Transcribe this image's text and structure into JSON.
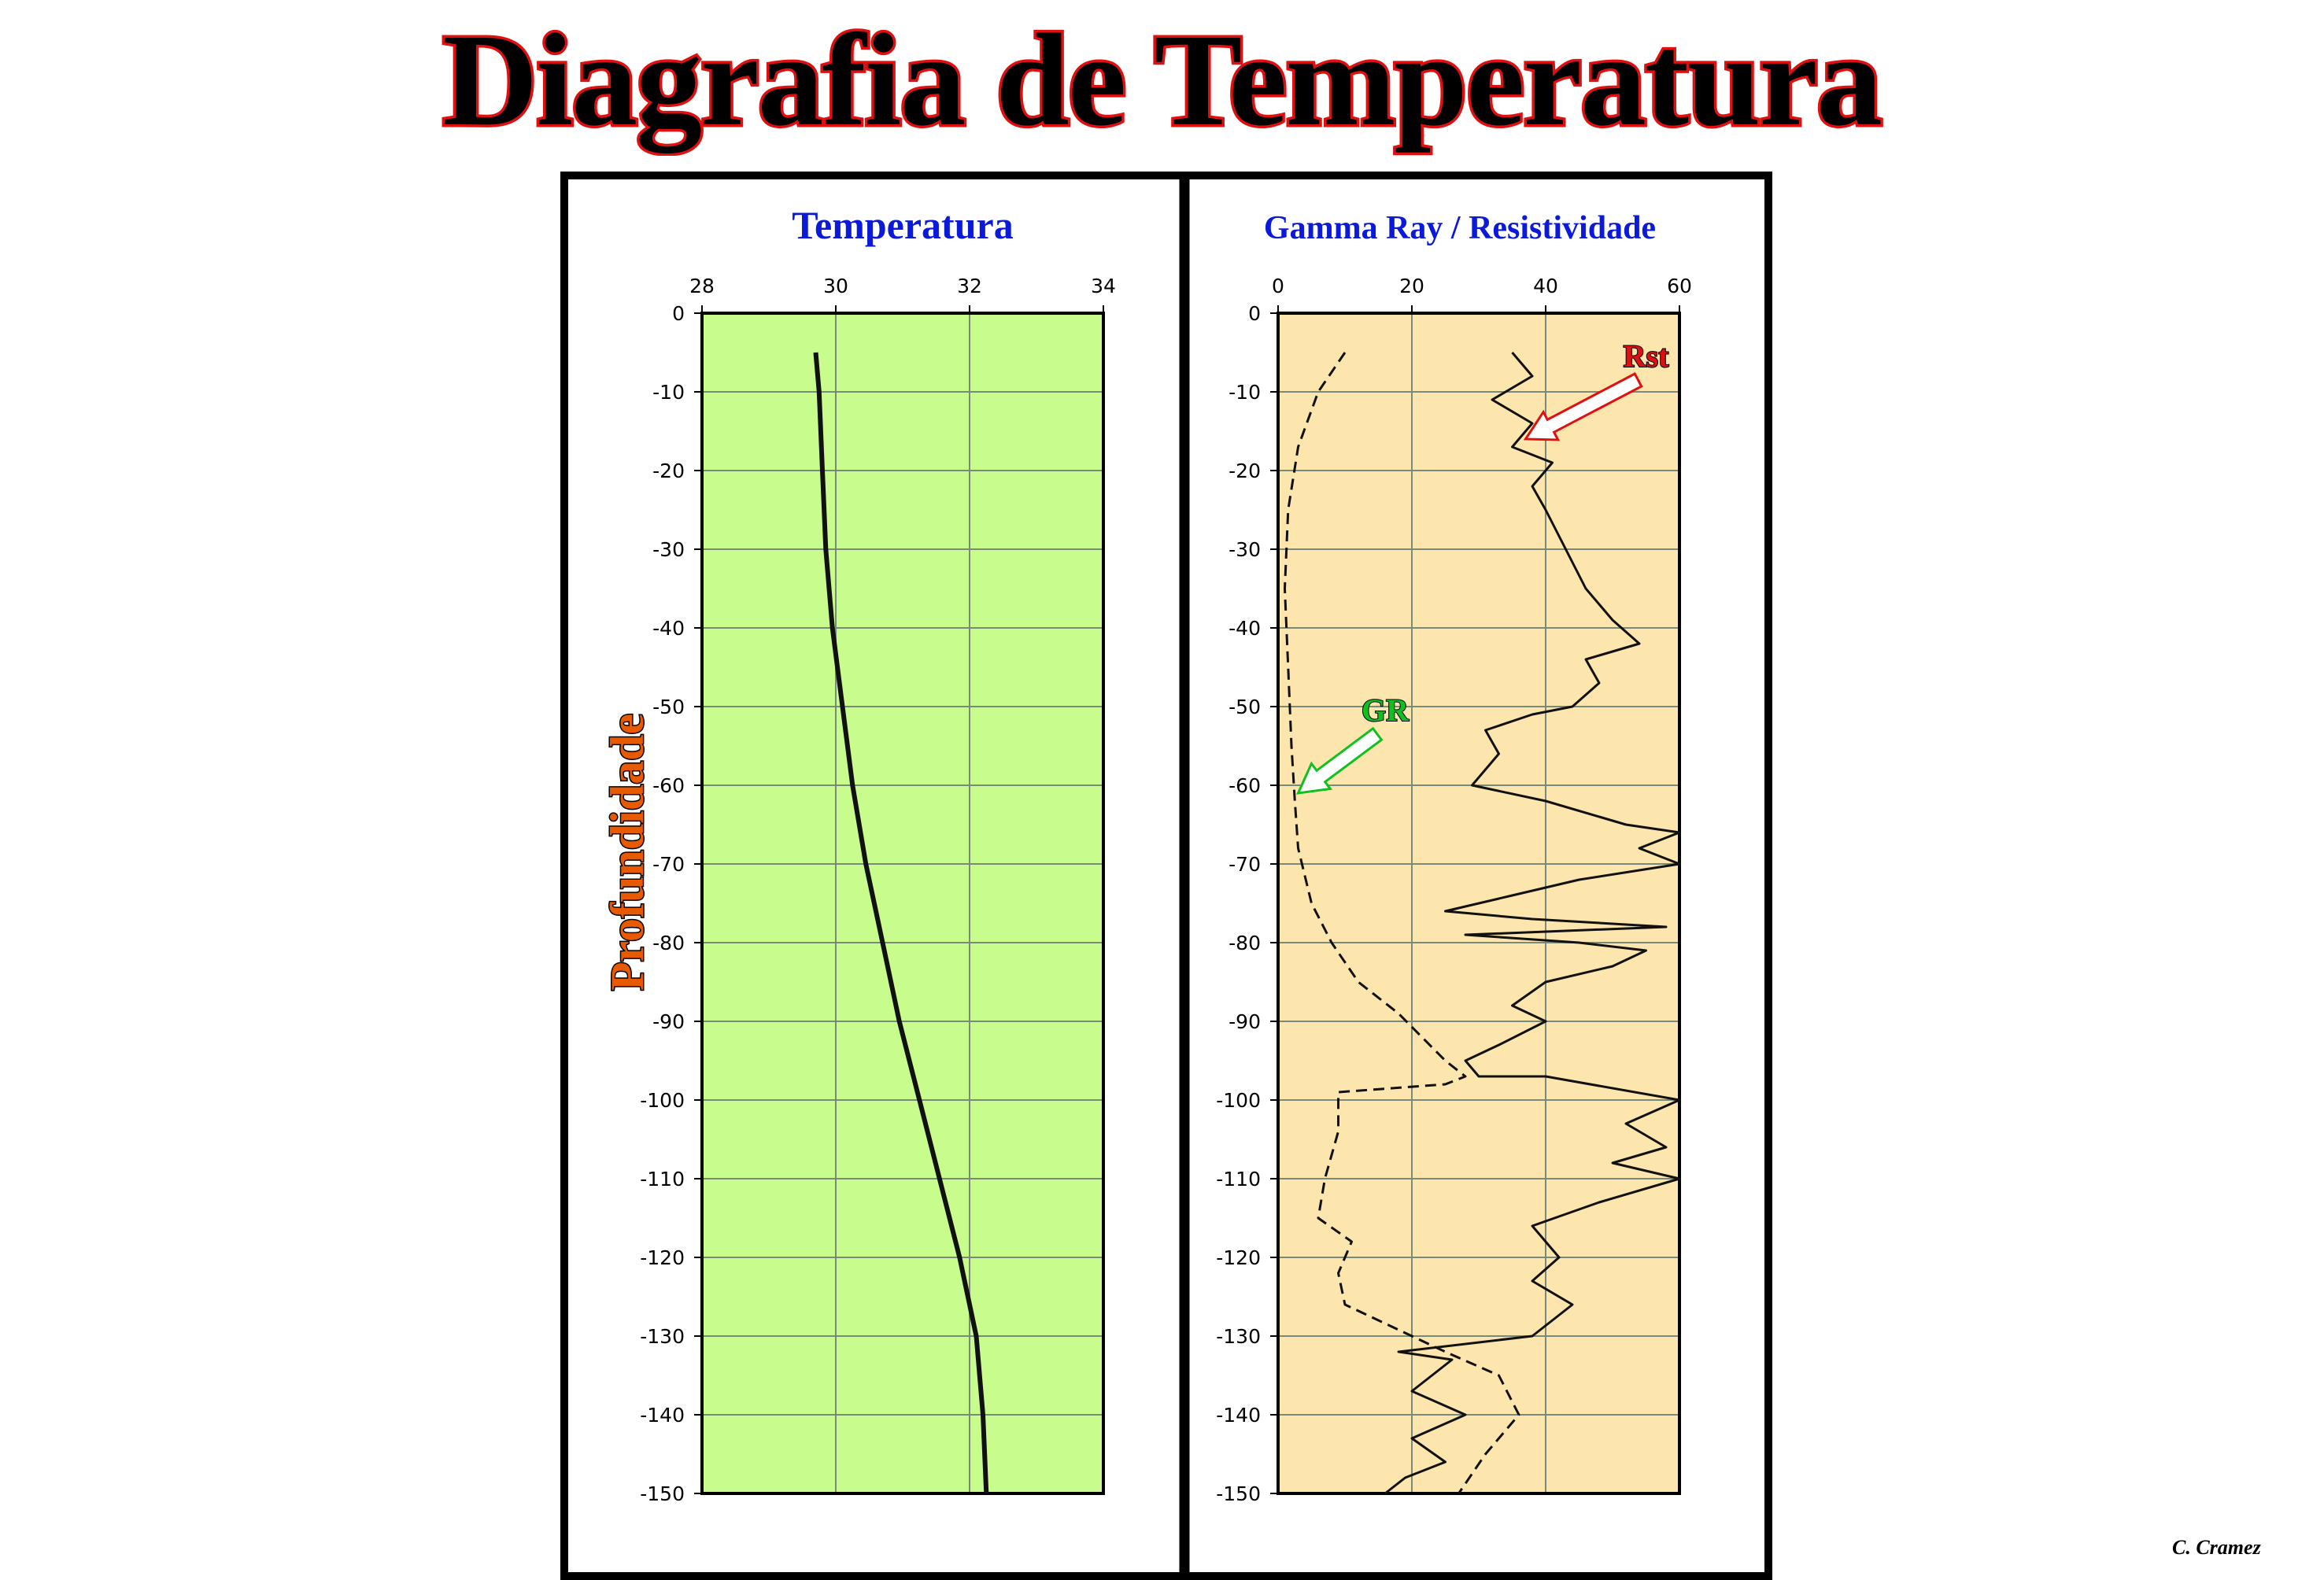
{
  "page": {
    "title": "Diagrafia de Temperatura",
    "credit": "C. Cramez",
    "depth_label": "Profundidade"
  },
  "colors": {
    "title_fill": "#000000",
    "title_outline": "#e01010",
    "temperature_bg": "#c8fc8c",
    "gamma_bg": "#fde6ae",
    "panel_title": "#0a1ad8",
    "depth_label_fill": "#e85a00",
    "rst_arrow": "#e01010",
    "gr_arrow": "#10c020"
  },
  "chart_data": [
    {
      "type": "line",
      "title": "Temperatura",
      "xlim": [
        28,
        34
      ],
      "x_ticks": [
        "28",
        "30",
        "32",
        "34"
      ],
      "ylim": [
        -150,
        0
      ],
      "y_ticks": [
        "0",
        "-10",
        "-20",
        "-30",
        "-40",
        "-50",
        "-60",
        "-70",
        "-80",
        "-90",
        "-100",
        "-110",
        "-120",
        "-130",
        "-140",
        "-150"
      ],
      "ylabel": "Profundidade",
      "grid": true,
      "series": [
        {
          "style": "solid",
          "points": [
            [
              29.7,
              -5
            ],
            [
              29.75,
              -10
            ],
            [
              29.8,
              -20
            ],
            [
              29.85,
              -30
            ],
            [
              29.95,
              -40
            ],
            [
              30.1,
              -50
            ],
            [
              30.25,
              -60
            ],
            [
              30.45,
              -70
            ],
            [
              30.7,
              -80
            ],
            [
              30.95,
              -90
            ],
            [
              31.25,
              -100
            ],
            [
              31.55,
              -110
            ],
            [
              31.85,
              -120
            ],
            [
              32.1,
              -130
            ],
            [
              32.2,
              -140
            ],
            [
              32.25,
              -150
            ]
          ]
        }
      ]
    },
    {
      "type": "line",
      "title": "Gamma Ray / Resistividade",
      "xlim": [
        0,
        60
      ],
      "x_ticks": [
        "0",
        "20",
        "40",
        "60"
      ],
      "ylim": [
        -150,
        0
      ],
      "y_ticks": [
        "0",
        "-10",
        "-20",
        "-30",
        "-40",
        "-50",
        "-60",
        "-70",
        "-80",
        "-90",
        "-100",
        "-110",
        "-120",
        "-130",
        "-140",
        "-150"
      ],
      "grid": true,
      "annotations": [
        {
          "text": "Rst",
          "x": 55,
          "y": -6,
          "points_to": [
            37,
            -16
          ]
        },
        {
          "text": "GR",
          "x": 16,
          "y": -51,
          "points_to": [
            3,
            -61
          ]
        }
      ],
      "series": [
        {
          "name": "GR",
          "style": "dashed",
          "points": [
            [
              10,
              -5
            ],
            [
              6,
              -10
            ],
            [
              3,
              -17
            ],
            [
              1.5,
              -25
            ],
            [
              1,
              -35
            ],
            [
              1.5,
              -45
            ],
            [
              2,
              -55
            ],
            [
              2.5,
              -62
            ],
            [
              3,
              -68
            ],
            [
              5,
              -75
            ],
            [
              8,
              -80
            ],
            [
              12,
              -85
            ],
            [
              18,
              -89
            ],
            [
              25,
              -95
            ],
            [
              28,
              -97
            ],
            [
              25,
              -98
            ],
            [
              9,
              -99
            ],
            [
              9,
              -104
            ],
            [
              7,
              -110
            ],
            [
              6,
              -115
            ],
            [
              11,
              -118
            ],
            [
              9,
              -122
            ],
            [
              10,
              -126
            ],
            [
              15,
              -128
            ],
            [
              25,
              -132
            ],
            [
              33,
              -135
            ],
            [
              36,
              -140
            ],
            [
              31,
              -145
            ],
            [
              27,
              -150
            ]
          ]
        },
        {
          "name": "Rst",
          "style": "solid",
          "points": [
            [
              35,
              -5
            ],
            [
              38,
              -8
            ],
            [
              32,
              -11
            ],
            [
              38,
              -14
            ],
            [
              35,
              -17
            ],
            [
              41,
              -19
            ],
            [
              38,
              -22
            ],
            [
              40,
              -25
            ],
            [
              43,
              -30
            ],
            [
              46,
              -35
            ],
            [
              50,
              -39
            ],
            [
              54,
              -42
            ],
            [
              46,
              -44
            ],
            [
              48,
              -47
            ],
            [
              44,
              -50
            ],
            [
              38,
              -51
            ],
            [
              31,
              -53
            ],
            [
              33,
              -56
            ],
            [
              29,
              -60
            ],
            [
              40,
              -62
            ],
            [
              52,
              -65
            ],
            [
              60,
              -66
            ],
            [
              54,
              -68
            ],
            [
              60,
              -70
            ],
            [
              45,
              -72
            ],
            [
              35,
              -74
            ],
            [
              25,
              -76
            ],
            [
              38,
              -77
            ],
            [
              58,
              -78
            ],
            [
              28,
              -79
            ],
            [
              45,
              -80
            ],
            [
              55,
              -81
            ],
            [
              50,
              -83
            ],
            [
              40,
              -85
            ],
            [
              35,
              -88
            ],
            [
              40,
              -90
            ],
            [
              33,
              -93
            ],
            [
              28,
              -95
            ],
            [
              30,
              -97
            ],
            [
              40,
              -97
            ],
            [
              60,
              -100
            ],
            [
              52,
              -103
            ],
            [
              58,
              -106
            ],
            [
              50,
              -108
            ],
            [
              60,
              -110
            ],
            [
              48,
              -113
            ],
            [
              38,
              -116
            ],
            [
              42,
              -120
            ],
            [
              38,
              -123
            ],
            [
              44,
              -126
            ],
            [
              38,
              -130
            ],
            [
              18,
              -132
            ],
            [
              26,
              -133
            ],
            [
              20,
              -137
            ],
            [
              28,
              -140
            ],
            [
              20,
              -143
            ],
            [
              25,
              -146
            ],
            [
              19,
              -148
            ],
            [
              16,
              -150
            ]
          ]
        }
      ]
    }
  ]
}
